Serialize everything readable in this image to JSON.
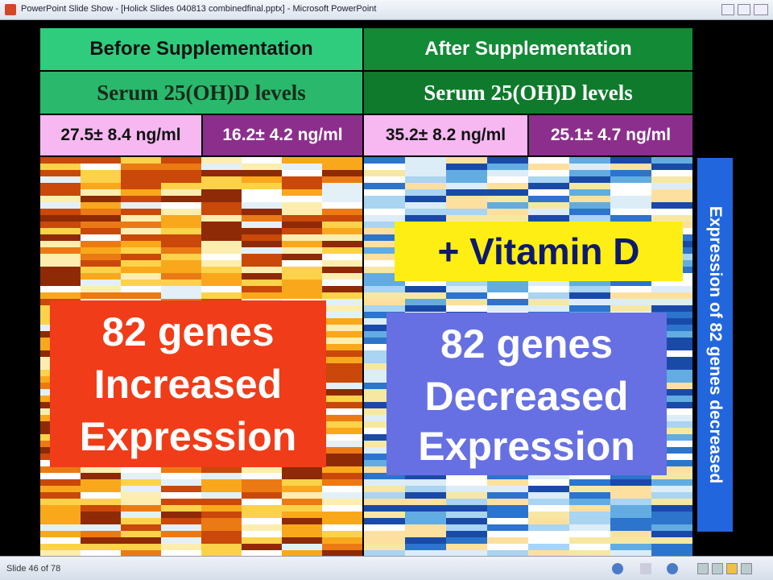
{
  "window": {
    "title": "PowerPoint Slide Show - [Holick Slides 040813 combinedfinal.pptx] - Microsoft PowerPoint"
  },
  "slide": {
    "headers": [
      "Before Supplementation",
      "After Supplementation"
    ],
    "subheaders": [
      "Serum 25(OH)D levels",
      "Serum 25(OH)D levels"
    ],
    "levels": [
      "27.5± 8.4 ng/ml",
      "16.2± 4.2 ng/ml",
      "35.2± 8.2 ng/ml",
      "25.1± 4.7 ng/ml"
    ],
    "callout": "+ Vitamin D",
    "left_box": [
      "82 genes",
      "Increased",
      "Expression"
    ],
    "right_box": [
      "82 genes",
      "Decreased",
      "Expression"
    ],
    "side_label": "Expression of 82 genes decreased"
  },
  "status": {
    "slide": "Slide 46 of 78"
  }
}
